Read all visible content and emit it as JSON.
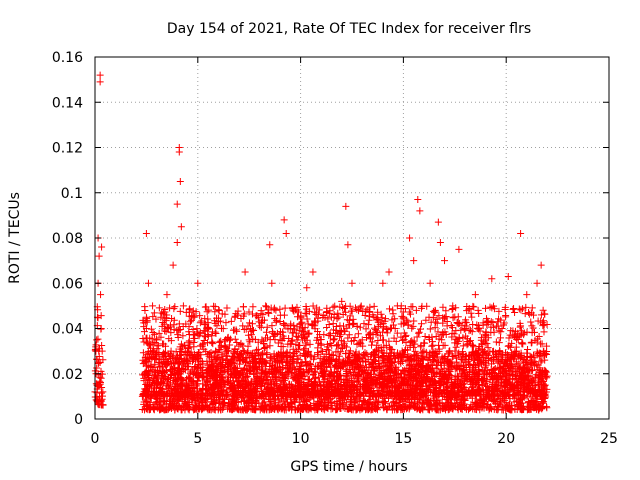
{
  "chart_data": {
    "type": "scatter",
    "title": "Day 154 of 2021, Rate Of TEC Index for receiver flrs",
    "xlabel": "GPS time / hours",
    "ylabel": "ROTI / TECUs",
    "xlim": [
      0,
      25
    ],
    "ylim": [
      0,
      0.16
    ],
    "x_ticks": [
      0,
      5,
      10,
      15,
      20,
      25
    ],
    "x_tick_labels": [
      "0",
      "5",
      "10",
      "15",
      "20",
      "25"
    ],
    "y_ticks": [
      0,
      0.02,
      0.04,
      0.06,
      0.08,
      0.1,
      0.12,
      0.14,
      0.16
    ],
    "y_tick_labels": [
      "0",
      "0.02",
      "0.04",
      "0.06",
      "0.08",
      "0.1",
      "0.12",
      "0.14",
      "0.16"
    ],
    "grid": true,
    "marker": "plus",
    "color": "#ff0000",
    "series": [
      {
        "points": [
          [
            0.0,
            0.012
          ],
          [
            0.05,
            0.02
          ],
          [
            0.08,
            0.035
          ],
          [
            0.1,
            0.008
          ],
          [
            0.12,
            0.045
          ],
          [
            0.15,
            0.06
          ],
          [
            0.15,
            0.08
          ],
          [
            0.18,
            0.03
          ],
          [
            0.2,
            0.015
          ],
          [
            0.2,
            0.072
          ],
          [
            0.22,
            0.01
          ],
          [
            0.25,
            0.149
          ],
          [
            0.25,
            0.152
          ],
          [
            0.25,
            0.025
          ],
          [
            0.27,
            0.055
          ],
          [
            0.3,
            0.018
          ],
          [
            0.3,
            0.04
          ],
          [
            0.32,
            0.076
          ],
          [
            0.35,
            0.03
          ],
          [
            0.38,
            0.012
          ],
          [
            2.4,
            0.02
          ],
          [
            2.5,
            0.04
          ],
          [
            2.5,
            0.082
          ],
          [
            2.6,
            0.06
          ],
          [
            2.7,
            0.03
          ],
          [
            2.8,
            0.05
          ],
          [
            2.9,
            0.015
          ],
          [
            3.0,
            0.035
          ],
          [
            3.1,
            0.025
          ],
          [
            3.2,
            0.045
          ],
          [
            3.3,
            0.01
          ],
          [
            3.5,
            0.055
          ],
          [
            3.7,
            0.03
          ],
          [
            3.8,
            0.068
          ],
          [
            3.9,
            0.02
          ],
          [
            4.0,
            0.095
          ],
          [
            4.0,
            0.078
          ],
          [
            4.1,
            0.12
          ],
          [
            4.1,
            0.118
          ],
          [
            4.15,
            0.105
          ],
          [
            4.2,
            0.085
          ],
          [
            4.3,
            0.05
          ],
          [
            4.5,
            0.03
          ],
          [
            4.8,
            0.045
          ],
          [
            5.0,
            0.06
          ],
          [
            5.0,
            0.02
          ],
          [
            5.5,
            0.04
          ],
          [
            6.0,
            0.015
          ],
          [
            6.5,
            0.03
          ],
          [
            6.8,
            0.045
          ],
          [
            7.0,
            0.02
          ],
          [
            7.3,
            0.065
          ],
          [
            7.5,
            0.035
          ],
          [
            8.0,
            0.025
          ],
          [
            8.3,
            0.05
          ],
          [
            8.5,
            0.077
          ],
          [
            8.6,
            0.06
          ],
          [
            9.0,
            0.035
          ],
          [
            9.2,
            0.088
          ],
          [
            9.3,
            0.082
          ],
          [
            9.5,
            0.04
          ],
          [
            10.0,
            0.02
          ],
          [
            10.3,
            0.058
          ],
          [
            10.6,
            0.065
          ],
          [
            11.0,
            0.03
          ],
          [
            11.5,
            0.045
          ],
          [
            12.0,
            0.052
          ],
          [
            12.2,
            0.094
          ],
          [
            12.3,
            0.077
          ],
          [
            12.5,
            0.06
          ],
          [
            13.0,
            0.035
          ],
          [
            13.5,
            0.025
          ],
          [
            14.0,
            0.06
          ],
          [
            14.3,
            0.065
          ],
          [
            14.6,
            0.04
          ],
          [
            15.0,
            0.045
          ],
          [
            15.3,
            0.08
          ],
          [
            15.5,
            0.07
          ],
          [
            15.7,
            0.097
          ],
          [
            15.8,
            0.092
          ],
          [
            16.0,
            0.03
          ],
          [
            16.3,
            0.06
          ],
          [
            16.7,
            0.087
          ],
          [
            16.8,
            0.078
          ],
          [
            17.0,
            0.07
          ],
          [
            17.4,
            0.05
          ],
          [
            17.7,
            0.075
          ],
          [
            18.0,
            0.04
          ],
          [
            18.5,
            0.055
          ],
          [
            19.0,
            0.035
          ],
          [
            19.3,
            0.062
          ],
          [
            19.8,
            0.04
          ],
          [
            20.1,
            0.063
          ],
          [
            20.5,
            0.03
          ],
          [
            20.7,
            0.082
          ],
          [
            21.0,
            0.055
          ],
          [
            21.3,
            0.025
          ],
          [
            21.5,
            0.06
          ],
          [
            21.7,
            0.068
          ],
          [
            21.9,
            0.015
          ]
        ],
        "dense_bands": [
          {
            "x0": 0.0,
            "x1": 0.4,
            "ymin": 0.006,
            "ymax": 0.05,
            "seed": 11
          },
          {
            "x0": 2.3,
            "x1": 22.0,
            "ymin": 0.004,
            "ymax": 0.03,
            "seed": 29
          },
          {
            "x0": 2.3,
            "x1": 22.0,
            "ymin": 0.01,
            "ymax": 0.05,
            "seed": 47
          }
        ]
      }
    ]
  }
}
